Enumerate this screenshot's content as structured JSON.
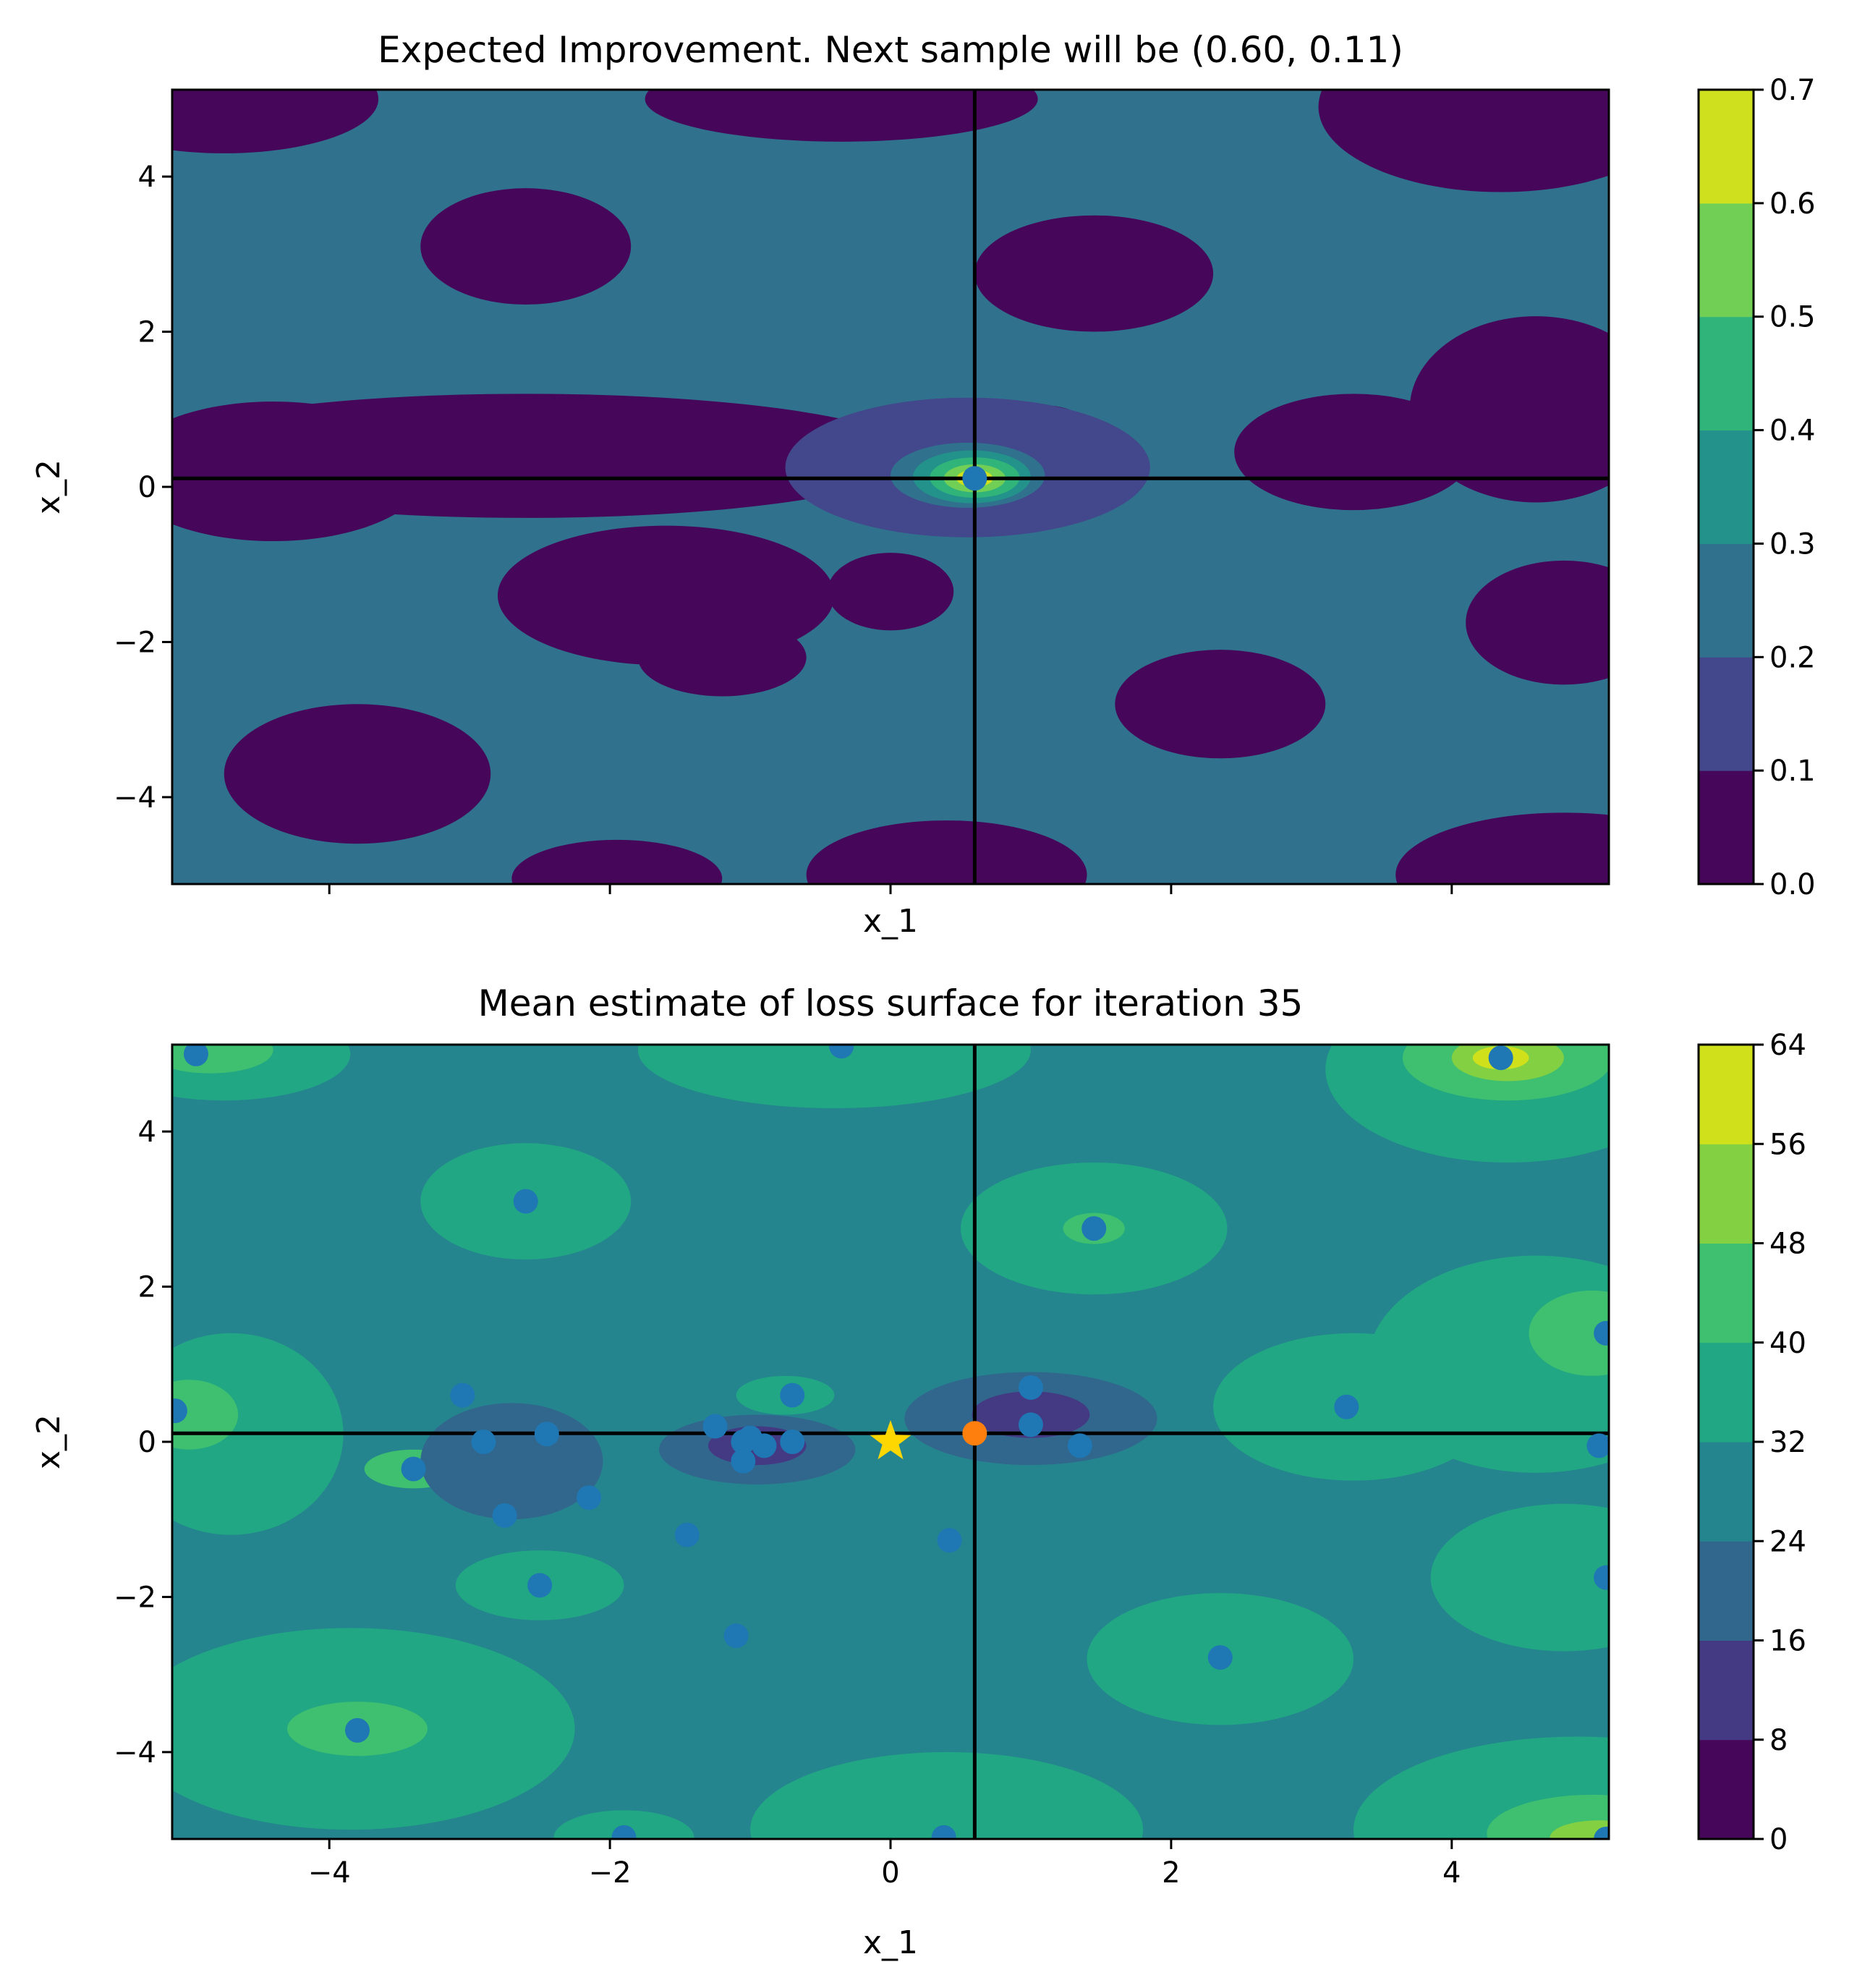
{
  "chart_data": [
    {
      "type": "contour",
      "title": "Expected Improvement. Next sample will be (0.60, 0.11)",
      "xlabel": "x_1",
      "ylabel": "x_2",
      "xlim": [
        -5.12,
        5.12
      ],
      "ylim": [
        -5.12,
        5.12
      ],
      "xticks": [],
      "yticks": [
        {
          "value": -4,
          "label": "−4"
        },
        {
          "value": -2,
          "label": "−2"
        },
        {
          "value": 0,
          "label": "0"
        },
        {
          "value": 2,
          "label": "2"
        },
        {
          "value": 4,
          "label": "4"
        }
      ],
      "colorbar": {
        "levels": [
          0.0,
          0.1,
          0.2,
          0.3,
          0.4,
          0.5,
          0.6,
          0.7
        ],
        "labels": [
          "0.0",
          "0.1",
          "0.2",
          "0.3",
          "0.4",
          "0.5",
          "0.6",
          "0.7"
        ]
      },
      "background_level": 2,
      "regions": [
        {
          "level": 0,
          "cx": -4.75,
          "cy": 5.0,
          "rx": 1.1,
          "ry": 0.7
        },
        {
          "level": 0,
          "cx": -0.35,
          "cy": 5.0,
          "rx": 1.4,
          "ry": 0.55
        },
        {
          "level": 0,
          "cx": 4.35,
          "cy": 4.9,
          "rx": 1.3,
          "ry": 1.1
        },
        {
          "level": 0,
          "cx": -2.6,
          "cy": 3.1,
          "rx": 0.75,
          "ry": 0.75
        },
        {
          "level": 0,
          "cx": 1.45,
          "cy": 2.75,
          "rx": 0.85,
          "ry": 0.75
        },
        {
          "level": 0,
          "cx": -2.6,
          "cy": 0.4,
          "rx": 2.8,
          "ry": 0.8
        },
        {
          "level": 0,
          "cx": -4.4,
          "cy": 0.2,
          "rx": 1.1,
          "ry": 0.9
        },
        {
          "level": 0,
          "cx": -1.6,
          "cy": -1.4,
          "rx": 1.2,
          "ry": 0.9
        },
        {
          "level": 0,
          "cx": -1.2,
          "cy": -2.2,
          "rx": 0.6,
          "ry": 0.5
        },
        {
          "level": 0,
          "cx": 0.0,
          "cy": -1.35,
          "rx": 0.45,
          "ry": 0.5
        },
        {
          "level": 0,
          "cx": 1.1,
          "cy": 0.8,
          "rx": 0.28,
          "ry": 0.25
        },
        {
          "level": 0,
          "cx": 1.35,
          "cy": -0.1,
          "rx": 0.3,
          "ry": 0.25
        },
        {
          "level": 0,
          "cx": 3.3,
          "cy": 0.45,
          "rx": 0.85,
          "ry": 0.75
        },
        {
          "level": 0,
          "cx": 4.6,
          "cy": 1.0,
          "rx": 0.9,
          "ry": 1.2
        },
        {
          "level": 0,
          "cx": 4.8,
          "cy": -1.75,
          "rx": 0.7,
          "ry": 0.8
        },
        {
          "level": 0,
          "cx": 2.35,
          "cy": -2.8,
          "rx": 0.75,
          "ry": 0.7
        },
        {
          "level": 0,
          "cx": -3.8,
          "cy": -3.7,
          "rx": 0.95,
          "ry": 0.9
        },
        {
          "level": 0,
          "cx": -1.95,
          "cy": -5.05,
          "rx": 0.75,
          "ry": 0.5
        },
        {
          "level": 0,
          "cx": 0.4,
          "cy": -5.0,
          "rx": 1.0,
          "ry": 0.7
        },
        {
          "level": 0,
          "cx": 4.8,
          "cy": -5.0,
          "rx": 1.2,
          "ry": 0.8
        },
        {
          "level": 1,
          "cx": 0.55,
          "cy": 0.25,
          "rx": 1.3,
          "ry": 0.9
        },
        {
          "level": 2,
          "cx": 0.55,
          "cy": 0.15,
          "rx": 0.55,
          "ry": 0.42
        },
        {
          "level": 3,
          "cx": 0.58,
          "cy": 0.13,
          "rx": 0.42,
          "ry": 0.34
        },
        {
          "level": 4,
          "cx": 0.6,
          "cy": 0.12,
          "rx": 0.32,
          "ry": 0.26
        },
        {
          "level": 5,
          "cx": 0.6,
          "cy": 0.11,
          "rx": 0.22,
          "ry": 0.18
        },
        {
          "level": 6,
          "cx": 0.6,
          "cy": 0.11,
          "rx": 0.13,
          "ry": 0.11
        }
      ],
      "crosshair": {
        "x": 0.6,
        "y": 0.11
      },
      "points": [
        {
          "x": 0.6,
          "y": 0.11,
          "color": "#1f77b4"
        }
      ]
    },
    {
      "type": "contour",
      "title": "Mean estimate of loss surface for iteration 35",
      "xlabel": "x_1",
      "ylabel": "x_2",
      "xlim": [
        -5.12,
        5.12
      ],
      "ylim": [
        -5.12,
        5.12
      ],
      "xticks": [
        {
          "value": -4,
          "label": "−4"
        },
        {
          "value": -2,
          "label": "−2"
        },
        {
          "value": 0,
          "label": "0"
        },
        {
          "value": 2,
          "label": "2"
        },
        {
          "value": 4,
          "label": "4"
        }
      ],
      "yticks": [
        {
          "value": -4,
          "label": "−4"
        },
        {
          "value": -2,
          "label": "−2"
        },
        {
          "value": 0,
          "label": "0"
        },
        {
          "value": 2,
          "label": "2"
        },
        {
          "value": 4,
          "label": "4"
        }
      ],
      "colorbar": {
        "levels": [
          0,
          8,
          16,
          24,
          32,
          40,
          48,
          56,
          64
        ],
        "labels": [
          "0",
          "8",
          "16",
          "24",
          "32",
          "40",
          "48",
          "56",
          "64"
        ]
      },
      "background_level": 3,
      "regions": [
        {
          "level": 4,
          "cx": -4.75,
          "cy": 5.0,
          "rx": 0.9,
          "ry": 0.6
        },
        {
          "level": 5,
          "cx": -4.85,
          "cy": 5.05,
          "rx": 0.45,
          "ry": 0.3
        },
        {
          "level": 4,
          "cx": -0.4,
          "cy": 5.05,
          "rx": 1.4,
          "ry": 0.75
        },
        {
          "level": 4,
          "cx": 4.4,
          "cy": 4.8,
          "rx": 1.3,
          "ry": 1.2
        },
        {
          "level": 5,
          "cx": 4.4,
          "cy": 4.95,
          "rx": 0.75,
          "ry": 0.55
        },
        {
          "level": 6,
          "cx": 4.4,
          "cy": 4.95,
          "rx": 0.4,
          "ry": 0.3
        },
        {
          "level": 7,
          "cx": 4.35,
          "cy": 4.95,
          "rx": 0.2,
          "ry": 0.15
        },
        {
          "level": 4,
          "cx": -2.6,
          "cy": 3.1,
          "rx": 0.75,
          "ry": 0.75
        },
        {
          "level": 4,
          "cx": 1.45,
          "cy": 2.75,
          "rx": 0.95,
          "ry": 0.85
        },
        {
          "level": 5,
          "cx": 1.45,
          "cy": 2.75,
          "rx": 0.22,
          "ry": 0.2
        },
        {
          "level": 4,
          "cx": 4.6,
          "cy": 1.0,
          "rx": 1.2,
          "ry": 1.4
        },
        {
          "level": 5,
          "cx": 5.0,
          "cy": 1.4,
          "rx": 0.45,
          "ry": 0.55
        },
        {
          "level": 4,
          "cx": 3.3,
          "cy": 0.45,
          "rx": 1.0,
          "ry": 0.95
        },
        {
          "level": 4,
          "cx": -4.7,
          "cy": 0.1,
          "rx": 0.8,
          "ry": 1.3
        },
        {
          "level": 5,
          "cx": -5.0,
          "cy": 0.35,
          "rx": 0.35,
          "ry": 0.45
        },
        {
          "level": 5,
          "cx": -3.4,
          "cy": -0.35,
          "rx": 0.35,
          "ry": 0.25
        },
        {
          "level": 4,
          "cx": -0.75,
          "cy": 0.6,
          "rx": 0.35,
          "ry": 0.25
        },
        {
          "level": 2,
          "cx": -2.7,
          "cy": -0.25,
          "rx": 0.65,
          "ry": 0.75
        },
        {
          "level": 2,
          "cx": -0.95,
          "cy": -0.1,
          "rx": 0.7,
          "ry": 0.45
        },
        {
          "level": 1,
          "cx": -0.95,
          "cy": -0.05,
          "rx": 0.35,
          "ry": 0.25
        },
        {
          "level": 2,
          "cx": 1.0,
          "cy": 0.3,
          "rx": 0.9,
          "ry": 0.6
        },
        {
          "level": 1,
          "cx": 1.0,
          "cy": 0.35,
          "rx": 0.42,
          "ry": 0.3
        },
        {
          "level": 4,
          "cx": -2.5,
          "cy": -1.85,
          "rx": 0.6,
          "ry": 0.45
        },
        {
          "level": 4,
          "cx": 4.8,
          "cy": -1.75,
          "rx": 0.95,
          "ry": 0.95
        },
        {
          "level": 4,
          "cx": 2.35,
          "cy": -2.8,
          "rx": 0.95,
          "ry": 0.85
        },
        {
          "level": 4,
          "cx": -3.85,
          "cy": -3.7,
          "rx": 1.6,
          "ry": 1.3
        },
        {
          "level": 5,
          "cx": -3.8,
          "cy": -3.7,
          "rx": 0.5,
          "ry": 0.35
        },
        {
          "level": 4,
          "cx": 0.4,
          "cy": -5.0,
          "rx": 1.4,
          "ry": 1.0
        },
        {
          "level": 4,
          "cx": -1.9,
          "cy": -5.1,
          "rx": 0.5,
          "ry": 0.35
        },
        {
          "level": 4,
          "cx": 4.9,
          "cy": -5.0,
          "rx": 1.6,
          "ry": 1.2
        },
        {
          "level": 5,
          "cx": 5.0,
          "cy": -5.05,
          "rx": 0.75,
          "ry": 0.5
        },
        {
          "level": 6,
          "cx": 5.05,
          "cy": -5.1,
          "rx": 0.35,
          "ry": 0.22
        }
      ],
      "crosshair": {
        "x": 0.6,
        "y": 0.11
      },
      "samples": [
        [
          -4.95,
          5.0
        ],
        [
          -0.35,
          5.1
        ],
        [
          4.35,
          4.95
        ],
        [
          -2.6,
          3.1
        ],
        [
          1.45,
          2.75
        ],
        [
          5.1,
          1.4
        ],
        [
          3.25,
          0.45
        ],
        [
          -5.1,
          0.4
        ],
        [
          -0.7,
          0.6
        ],
        [
          1.0,
          0.7
        ],
        [
          1.0,
          0.22
        ],
        [
          -3.05,
          0.6
        ],
        [
          -2.9,
          0.0
        ],
        [
          -2.45,
          0.1
        ],
        [
          -1.25,
          0.2
        ],
        [
          -1.05,
          0.0
        ],
        [
          -0.9,
          -0.05
        ],
        [
          -0.7,
          0.0
        ],
        [
          -1.0,
          0.05
        ],
        [
          -1.05,
          -0.25
        ],
        [
          1.35,
          -0.05
        ],
        [
          5.05,
          -0.05
        ],
        [
          -3.4,
          -0.35
        ],
        [
          -2.15,
          -0.72
        ],
        [
          -2.75,
          -0.95
        ],
        [
          -1.45,
          -1.2
        ],
        [
          0.42,
          -1.27
        ],
        [
          -2.5,
          -1.85
        ],
        [
          5.1,
          -1.75
        ],
        [
          -1.1,
          -2.5
        ],
        [
          2.35,
          -2.78
        ],
        [
          -3.8,
          -3.72
        ],
        [
          -1.9,
          -5.1
        ],
        [
          0.38,
          -5.1
        ],
        [
          5.1,
          -5.12
        ]
      ],
      "sample_color": "#1f77b4",
      "next_point": {
        "x": 0.6,
        "y": 0.11,
        "color": "#ff7f0e"
      },
      "best_point": {
        "x": 0.0,
        "y": 0.0,
        "color": "#ffd700"
      }
    }
  ]
}
